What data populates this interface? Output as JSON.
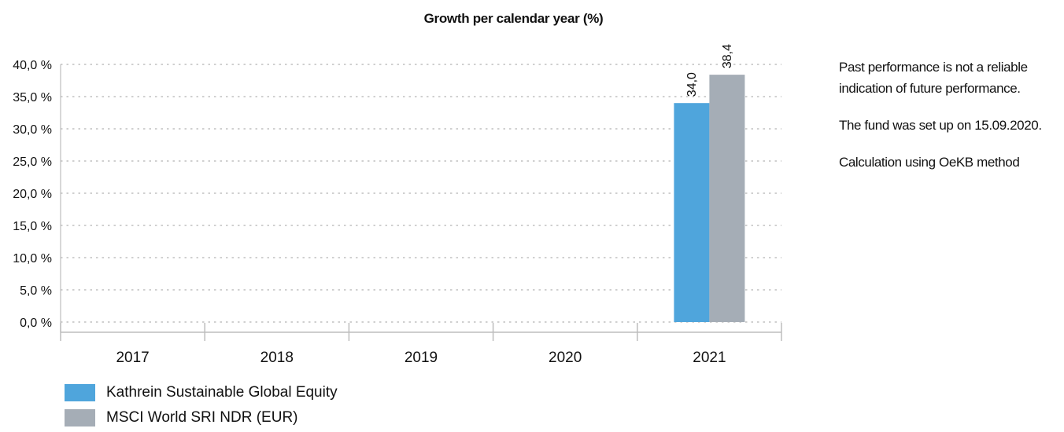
{
  "chart_data": {
    "type": "bar",
    "title": "Growth per calendar year (%)",
    "categories": [
      "2017",
      "2018",
      "2019",
      "2020",
      "2021"
    ],
    "series": [
      {
        "name": "Kathrein Sustainable Global Equity",
        "color": "#4FA5DC",
        "values": [
          null,
          null,
          null,
          null,
          34.0
        ],
        "labels": [
          "",
          "",
          "",
          "",
          "34,0"
        ]
      },
      {
        "name": "MSCI World SRI NDR (EUR)",
        "color": "#A5ADB6",
        "values": [
          null,
          null,
          null,
          null,
          38.4
        ],
        "labels": [
          "",
          "",
          "",
          "",
          "38,4"
        ]
      }
    ],
    "ylim": [
      0,
      40
    ],
    "yticks": [
      0,
      5,
      10,
      15,
      20,
      25,
      30,
      35,
      40
    ],
    "ytick_labels": [
      "0,0 %",
      "5,0 %",
      "10,0 %",
      "15,0 %",
      "20,0 %",
      "25,0 %",
      "30,0 %",
      "35,0 %",
      "40,0 %"
    ],
    "grid": true,
    "legend_position": "bottom-left"
  },
  "notes": {
    "disclaimer": "Past performance is not a reliable indication of future performance.",
    "setup": "The fund was set up on 15.09.2020.",
    "method": "Calculation using OeKB method"
  }
}
